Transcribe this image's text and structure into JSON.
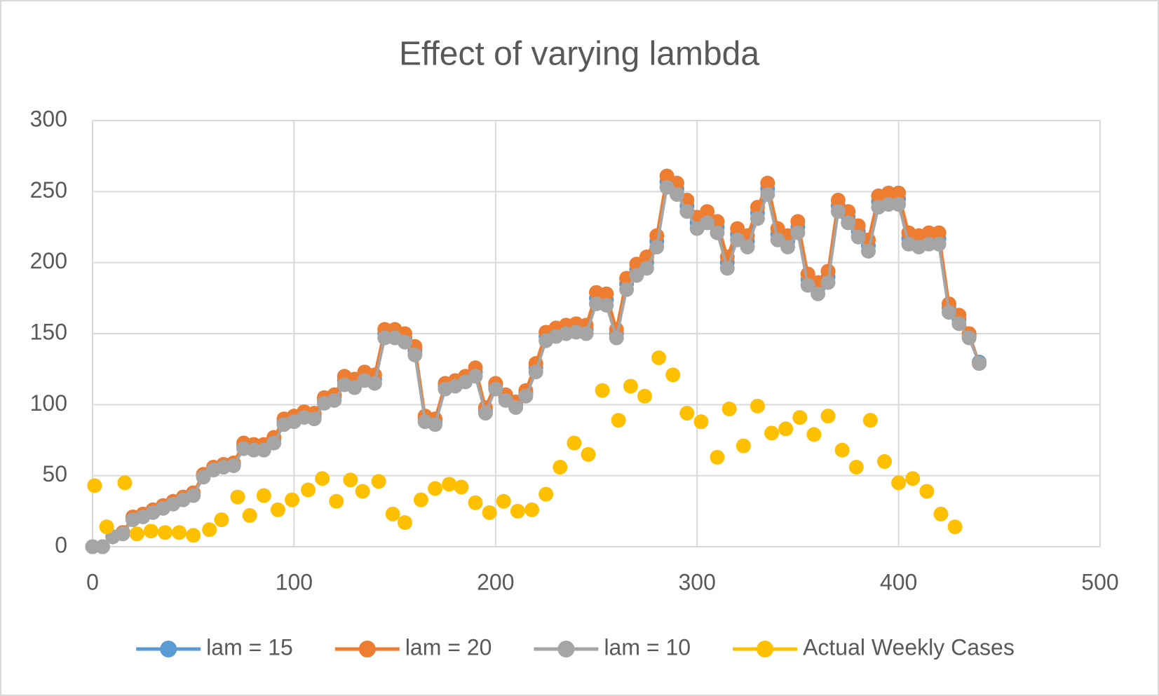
{
  "chart_data": {
    "type": "scatter",
    "title": "Effect of varying lambda",
    "xlim": [
      0,
      500
    ],
    "xticks": [
      0,
      100,
      200,
      300,
      400,
      500
    ],
    "ylim": [
      0,
      300
    ],
    "yticks": [
      0,
      50,
      100,
      150,
      200,
      250,
      300
    ],
    "grid": true,
    "legend": "bottom",
    "series": [
      {
        "name": "lam = 15",
        "color": "#5b9bd5",
        "show_line": true,
        "x": [
          0,
          5,
          10,
          15,
          20,
          25,
          30,
          35,
          40,
          45,
          50,
          55,
          60,
          65,
          70,
          75,
          80,
          85,
          90,
          95,
          100,
          105,
          110,
          115,
          120,
          125,
          130,
          135,
          140,
          145,
          150,
          155,
          160,
          165,
          170,
          175,
          180,
          185,
          190,
          195,
          200,
          205,
          210,
          215,
          220,
          225,
          230,
          235,
          240,
          245,
          250,
          255,
          260,
          265,
          270,
          275,
          280,
          285,
          290,
          295,
          300,
          305,
          310,
          315,
          320,
          325,
          330,
          335,
          340,
          345,
          350,
          355,
          360,
          365,
          370,
          375,
          380,
          385,
          390,
          395,
          400,
          405,
          410,
          415,
          420,
          425,
          430,
          435,
          440
        ],
        "values": [
          0,
          0,
          7,
          10,
          20,
          22,
          25,
          28,
          31,
          34,
          37,
          50,
          55,
          57,
          58,
          71,
          70,
          70,
          75,
          88,
          90,
          93,
          92,
          103,
          105,
          117,
          115,
          120,
          118,
          150,
          150,
          147,
          138,
          90,
          88,
          113,
          115,
          118,
          123,
          96,
          113,
          105,
          100,
          108,
          126,
          148,
          151,
          153,
          154,
          153,
          175,
          174,
          150,
          185,
          195,
          200,
          215,
          257,
          252,
          240,
          228,
          232,
          225,
          200,
          220,
          215,
          235,
          252,
          220,
          215,
          225,
          188,
          182,
          190,
          240,
          232,
          222,
          212,
          243,
          245,
          245,
          217,
          215,
          217,
          217,
          168,
          160,
          148,
          130
        ]
      },
      {
        "name": "lam = 20",
        "color": "#ed7d31",
        "show_line": true,
        "x": [
          0,
          5,
          10,
          15,
          20,
          25,
          30,
          35,
          40,
          45,
          50,
          55,
          60,
          65,
          70,
          75,
          80,
          85,
          90,
          95,
          100,
          105,
          110,
          115,
          120,
          125,
          130,
          135,
          140,
          145,
          150,
          155,
          160,
          165,
          170,
          175,
          180,
          185,
          190,
          195,
          200,
          205,
          210,
          215,
          220,
          225,
          230,
          235,
          240,
          245,
          250,
          255,
          260,
          265,
          270,
          275,
          280,
          285,
          290,
          295,
          300,
          305,
          310,
          315,
          320,
          325,
          330,
          335,
          340,
          345,
          350,
          355,
          360,
          365,
          370,
          375,
          380,
          385,
          390,
          395,
          400,
          405,
          410,
          415,
          420,
          425,
          430,
          435,
          440
        ],
        "values": [
          0,
          0,
          7,
          10,
          21,
          23,
          26,
          29,
          32,
          35,
          38,
          51,
          56,
          58,
          59,
          73,
          72,
          72,
          77,
          90,
          92,
          95,
          94,
          105,
          107,
          120,
          118,
          123,
          121,
          153,
          153,
          150,
          141,
          92,
          90,
          115,
          117,
          120,
          126,
          98,
          115,
          107,
          102,
          110,
          129,
          151,
          154,
          156,
          157,
          156,
          179,
          178,
          153,
          189,
          199,
          204,
          219,
          261,
          256,
          244,
          232,
          236,
          229,
          204,
          224,
          219,
          239,
          256,
          224,
          219,
          229,
          192,
          186,
          194,
          244,
          236,
          226,
          216,
          247,
          249,
          249,
          221,
          219,
          221,
          221,
          171,
          163,
          150,
          129
        ]
      },
      {
        "name": "lam = 10",
        "color": "#a5a5a5",
        "show_line": true,
        "x": [
          0,
          5,
          10,
          15,
          20,
          25,
          30,
          35,
          40,
          45,
          50,
          55,
          60,
          65,
          70,
          75,
          80,
          85,
          90,
          95,
          100,
          105,
          110,
          115,
          120,
          125,
          130,
          135,
          140,
          145,
          150,
          155,
          160,
          165,
          170,
          175,
          180,
          185,
          190,
          195,
          200,
          205,
          210,
          215,
          220,
          225,
          230,
          235,
          240,
          245,
          250,
          255,
          260,
          265,
          270,
          275,
          280,
          285,
          290,
          295,
          300,
          305,
          310,
          315,
          320,
          325,
          330,
          335,
          340,
          345,
          350,
          355,
          360,
          365,
          370,
          375,
          380,
          385,
          390,
          395,
          400,
          405,
          410,
          415,
          420,
          425,
          430,
          435,
          440
        ],
        "values": [
          0,
          0,
          7,
          9,
          19,
          21,
          24,
          27,
          30,
          33,
          36,
          49,
          54,
          56,
          57,
          69,
          68,
          68,
          73,
          86,
          88,
          91,
          90,
          101,
          103,
          114,
          112,
          117,
          115,
          147,
          147,
          144,
          135,
          88,
          86,
          111,
          113,
          116,
          120,
          94,
          111,
          103,
          98,
          106,
          123,
          145,
          148,
          150,
          151,
          150,
          171,
          170,
          147,
          181,
          191,
          196,
          211,
          253,
          248,
          236,
          224,
          228,
          221,
          196,
          216,
          211,
          231,
          248,
          216,
          211,
          221,
          184,
          178,
          186,
          236,
          228,
          218,
          208,
          239,
          241,
          241,
          213,
          211,
          213,
          213,
          165,
          157,
          147,
          129
        ]
      },
      {
        "name": "Actual Weekly Cases",
        "color": "#ffc000",
        "show_line": false,
        "x": [
          1,
          7,
          16,
          22,
          29,
          36,
          43,
          50,
          58,
          64,
          72,
          78,
          85,
          92,
          99,
          107,
          114,
          121,
          128,
          134,
          142,
          149,
          155,
          163,
          170,
          177,
          183,
          190,
          197,
          204,
          211,
          218,
          225,
          232,
          239,
          246,
          253,
          261,
          267,
          274,
          281,
          288,
          295,
          302,
          310,
          316,
          323,
          330,
          337,
          344,
          351,
          358,
          365,
          372,
          379,
          386,
          393,
          400,
          407,
          414,
          421,
          428
        ],
        "values": [
          43,
          14,
          45,
          9,
          11,
          10,
          10,
          8,
          12,
          19,
          35,
          22,
          36,
          26,
          33,
          40,
          48,
          32,
          47,
          39,
          46,
          23,
          17,
          33,
          41,
          44,
          42,
          31,
          24,
          32,
          25,
          26,
          37,
          56,
          73,
          65,
          110,
          89,
          113,
          106,
          133,
          121,
          94,
          88,
          63,
          97,
          71,
          99,
          80,
          83,
          91,
          79,
          92,
          68,
          56,
          89,
          60,
          45,
          48,
          39,
          23,
          14
        ]
      }
    ]
  }
}
